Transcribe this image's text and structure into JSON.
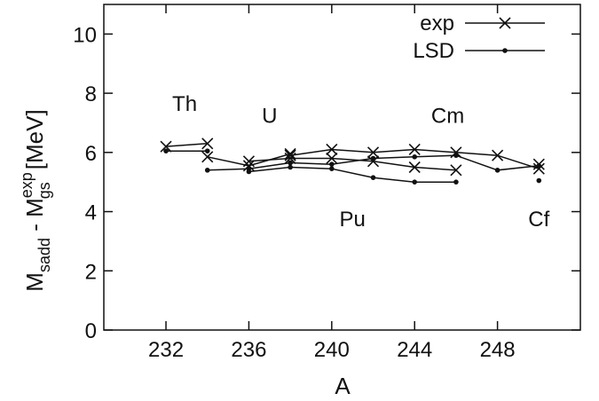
{
  "chart_data": {
    "type": "line",
    "xlabel": "A",
    "ylabel_parts": {
      "main": "M",
      "sub1": "sadd",
      "mid": " - M",
      "sup2": "exp",
      "sub2": "gs",
      "unit": "[MeV]"
    },
    "xlim": [
      229,
      252
    ],
    "ylim": [
      0,
      11
    ],
    "xticks": [
      232,
      236,
      240,
      244,
      248
    ],
    "yticks": [
      0,
      2,
      4,
      6,
      8,
      10
    ],
    "grid": false,
    "legend_position": "top-right",
    "legend": [
      {
        "label": "exp",
        "marker": "x"
      },
      {
        "label": "LSD",
        "marker": "dot"
      }
    ],
    "element_labels": [
      {
        "text": "Th",
        "x": 232.9,
        "y": 7.4
      },
      {
        "text": "U",
        "x": 237.0,
        "y": 7.0
      },
      {
        "text": "Cm",
        "x": 245.6,
        "y": 7.0
      },
      {
        "text": "Pu",
        "x": 241.0,
        "y": 3.5
      },
      {
        "text": "Cf",
        "x": 250.0,
        "y": 3.5
      }
    ],
    "series": [
      {
        "marker": "x",
        "points": [
          [
            232,
            6.2
          ],
          [
            234,
            6.3
          ]
        ]
      },
      {
        "marker": "dot",
        "points": [
          [
            232,
            6.05
          ],
          [
            234,
            6.05
          ]
        ]
      },
      {
        "marker": "x",
        "points": [
          [
            234,
            5.85
          ],
          [
            236,
            5.55
          ],
          [
            238,
            5.95
          ]
        ]
      },
      {
        "marker": "dot",
        "points": [
          [
            234,
            5.4
          ],
          [
            236,
            5.45
          ],
          [
            238,
            5.65
          ]
        ]
      },
      {
        "marker": "x",
        "points": [
          [
            236,
            5.7
          ],
          [
            238,
            5.8
          ],
          [
            240,
            5.8
          ],
          [
            242,
            5.7
          ],
          [
            244,
            5.5
          ],
          [
            246,
            5.4
          ]
        ]
      },
      {
        "marker": "dot",
        "points": [
          [
            236,
            5.35
          ],
          [
            238,
            5.5
          ],
          [
            240,
            5.45
          ],
          [
            242,
            5.15
          ],
          [
            244,
            5.0
          ],
          [
            246,
            5.0
          ]
        ]
      },
      {
        "marker": "x",
        "points": [
          [
            238,
            5.9
          ],
          [
            240,
            6.1
          ],
          [
            242,
            6.0
          ],
          [
            244,
            6.1
          ],
          [
            246,
            6.0
          ],
          [
            248,
            5.9
          ],
          [
            250,
            5.45
          ]
        ]
      },
      {
        "marker": "dot",
        "points": [
          [
            238,
            5.65
          ],
          [
            240,
            5.6
          ],
          [
            242,
            5.8
          ],
          [
            244,
            5.85
          ],
          [
            246,
            5.9
          ],
          [
            248,
            5.4
          ],
          [
            250,
            5.55
          ]
        ]
      },
      {
        "marker": "x",
        "points": [
          [
            250,
            5.6
          ]
        ]
      },
      {
        "marker": "dot",
        "points": [
          [
            250,
            5.05
          ]
        ]
      }
    ]
  }
}
